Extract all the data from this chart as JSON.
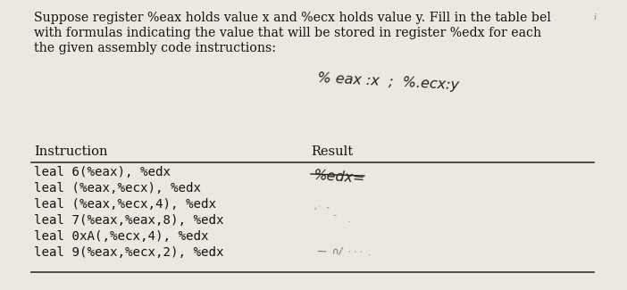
{
  "bg_color": "#ede8df",
  "title_line1": "Suppose register %eax holds value x and %ecx holds value y. Fill in the table bel",
  "title_line2": "with formulas indicating the value that will be stored in register %edx for each",
  "title_line3": "the given assembly code instructions:",
  "col1_header": "Instruction",
  "col2_header": "Result",
  "instructions": [
    "leal 6(%eax), %edx",
    "leal (%eax,%ecx), %edx",
    "leal (%eax,%ecx,4), %edx",
    "leal 7(%eax,%eax,8), %edx",
    "leal 0xA(,%ecx,4), %edx",
    "leal 9(%eax,%ecx,2), %edx"
  ],
  "font_color": "#111111",
  "title_fontsize": 10.2,
  "header_fontsize": 10.5,
  "instruction_fontsize": 10.2,
  "note1_text": "% eax :x  ;  %.ecx:y",
  "note2_text": "%edx=",
  "note_color": "#222222",
  "line_color": "#333333"
}
